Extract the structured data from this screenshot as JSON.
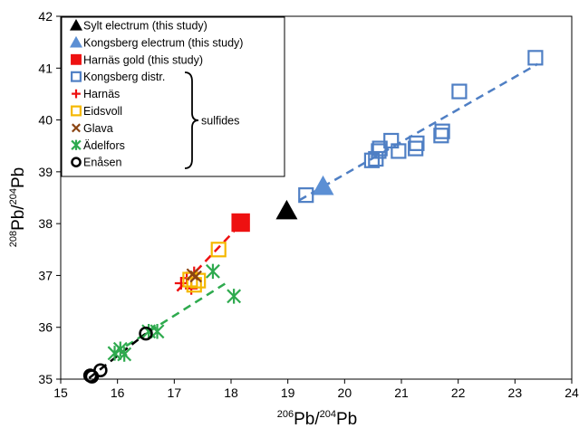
{
  "chart_data": {
    "type": "scatter",
    "xlabel": {
      "pre": "206",
      "main": "Pb/",
      "sup2": "204",
      "post": "Pb"
    },
    "ylabel": {
      "pre": "208",
      "main": "Pb/",
      "sup2": "204",
      "post": "Pb"
    },
    "xlim": [
      15,
      24
    ],
    "ylim": [
      35,
      42
    ],
    "xticks": [
      15,
      16,
      17,
      18,
      19,
      20,
      21,
      22,
      23,
      24
    ],
    "yticks": [
      35,
      36,
      37,
      38,
      39,
      40,
      41,
      42
    ],
    "grid": false,
    "legend_position": "top-left",
    "brace_label": "sulfides",
    "series": [
      {
        "name": "Sylt electrum (this study)",
        "marker": "triangle-filled",
        "color": "#000000",
        "points": [
          [
            18.98,
            38.25
          ]
        ]
      },
      {
        "name": "Kongsberg electrum (this study)",
        "marker": "triangle-filled",
        "color": "#5b8fd4",
        "points": [
          [
            19.62,
            38.72
          ]
        ]
      },
      {
        "name": "Harnäs gold (this study)",
        "marker": "square-filled",
        "color": "#ee1111",
        "points": [
          [
            18.17,
            38.02
          ]
        ]
      },
      {
        "name": "Kongsberg distr.",
        "marker": "square-open",
        "color": "#4f7fc4",
        "points": [
          [
            19.32,
            38.55
          ],
          [
            20.48,
            39.22
          ],
          [
            20.55,
            39.25
          ],
          [
            20.6,
            39.4
          ],
          [
            20.62,
            39.45
          ],
          [
            20.82,
            39.6
          ],
          [
            20.95,
            39.4
          ],
          [
            21.25,
            39.45
          ],
          [
            21.27,
            39.55
          ],
          [
            21.7,
            39.7
          ],
          [
            21.72,
            39.78
          ],
          [
            22.02,
            40.55
          ],
          [
            23.36,
            41.2
          ]
        ]
      },
      {
        "name": "Harnäs",
        "marker": "plus",
        "color": "#ee1111",
        "points": [
          [
            17.12,
            36.85
          ],
          [
            17.22,
            36.95
          ],
          [
            17.35,
            37.05
          ],
          [
            17.3,
            36.75
          ]
        ]
      },
      {
        "name": "Eidsvoll",
        "marker": "square-open",
        "color": "#f5b800",
        "points": [
          [
            17.28,
            36.92
          ],
          [
            17.35,
            36.82
          ],
          [
            17.42,
            36.9
          ],
          [
            17.78,
            37.5
          ]
        ]
      },
      {
        "name": "Glava",
        "marker": "x",
        "color": "#8b4513",
        "points": [
          [
            17.32,
            37.02
          ],
          [
            17.38,
            36.98
          ]
        ]
      },
      {
        "name": "Ädelfors",
        "marker": "asterisk",
        "color": "#2eaa4e",
        "points": [
          [
            15.95,
            35.5
          ],
          [
            16.05,
            35.58
          ],
          [
            16.12,
            35.48
          ],
          [
            16.55,
            35.92
          ],
          [
            16.7,
            35.92
          ],
          [
            17.68,
            37.08
          ],
          [
            18.05,
            36.6
          ]
        ]
      },
      {
        "name": "Enåsen",
        "marker": "circle-open",
        "color": "#000000",
        "points": [
          [
            15.52,
            35.07
          ],
          [
            15.55,
            35.05
          ],
          [
            15.7,
            35.17
          ],
          [
            16.5,
            35.88
          ]
        ]
      }
    ],
    "trend_lines": [
      {
        "color": "#4f7fc4",
        "points": [
          [
            19.2,
            38.45
          ],
          [
            23.4,
            41.08
          ]
        ]
      },
      {
        "color": "#ee1111",
        "points": [
          [
            17.05,
            36.7
          ],
          [
            18.05,
            37.85
          ]
        ]
      },
      {
        "color": "#2eaa4e",
        "points": [
          [
            15.95,
            35.5
          ],
          [
            17.95,
            36.88
          ]
        ]
      },
      {
        "color": "#000000",
        "points": [
          [
            15.5,
            35.02
          ],
          [
            16.5,
            35.88
          ]
        ]
      }
    ]
  }
}
